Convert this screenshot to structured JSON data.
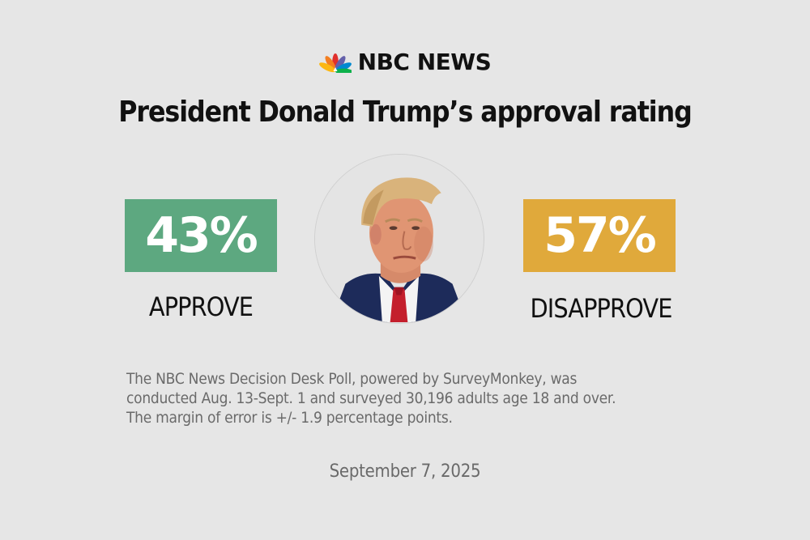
{
  "brand": {
    "name": "NBC NEWS",
    "logo_icon": "peacock-icon"
  },
  "title": "President Donald Trump’s approval rating",
  "approve": {
    "value": "43%",
    "label": "APPROVE",
    "color": "#5da880"
  },
  "disapprove": {
    "value": "57%",
    "label": "DISAPPROVE",
    "color": "#e0a93b"
  },
  "portrait_icon": "trump-portrait",
  "note_lines": [
    "The NBC News Decision Desk Poll, powered by SurveyMonkey, was",
    "conducted Aug. 13-Sept. 1 and surveyed 30,196 adults age 18 and over.",
    "The margin of error is +/- 1.9 percentage points."
  ],
  "date": "September 7, 2025",
  "background_color": "#e6e6e6"
}
